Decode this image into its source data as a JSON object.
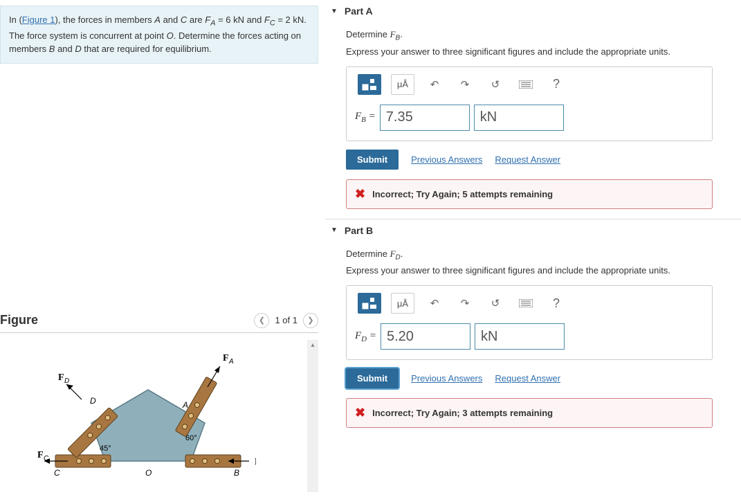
{
  "problem": {
    "text_prefix": "In (",
    "figure_link": "Figure 1",
    "text_mid": "), the forces in members ",
    "mA": "A",
    "and1": " and ",
    "mC": "C",
    "are": " are ",
    "FA_label": "F",
    "FA_sub": "A",
    "FA_val": " = 6 kN",
    "and2": " and ",
    "FC_label": "F",
    "FC_sub": "C",
    "FC_val": " = 2 kN",
    "text_rest": ". The force system is concurrent at point ",
    "ptO": "O",
    "text_end": ". Determine the forces acting on members ",
    "mB": "B",
    "and3": " and ",
    "mD": "D",
    "tail": " that are required for equilibrium."
  },
  "figure": {
    "title": "Figure",
    "nav_text": "1 of 1",
    "labels": {
      "FA": "F",
      "FA_sub": "A",
      "FB": "F",
      "FB_sub": "B",
      "FC": "F",
      "FC_sub": "C",
      "FD": "F",
      "FD_sub": "D",
      "A": "A",
      "B": "B",
      "C": "C",
      "D": "D",
      "O": "O",
      "ang45": "45°",
      "ang60": "60°"
    },
    "colors": {
      "body": "#8fb0ba",
      "body_stroke": "#5a7a85",
      "member": "#b58850",
      "member_stroke": "#5e3f1c",
      "bolt": "#e0c080"
    }
  },
  "parts": [
    {
      "title": "Part A",
      "determine": "Determine ",
      "var": "F",
      "sub": "B",
      "period": ".",
      "instructions": "Express your answer to three significant figures and include the appropriate units.",
      "toolbar": {
        "units_label": "μÅ"
      },
      "eq_var": "F",
      "eq_sub": "B",
      "eq_eq": " = ",
      "value": "7.35",
      "unit": "kN",
      "submit": "Submit",
      "prev": "Previous Answers",
      "req": "Request Answer",
      "feedback": "Incorrect; Try Again; 5 attempts remaining",
      "submit_focus": false
    },
    {
      "title": "Part B",
      "determine": "Determine ",
      "var": "F",
      "sub": "D",
      "period": ".",
      "instructions": "Express your answer to three significant figures and include the appropriate units.",
      "toolbar": {
        "units_label": "μÅ"
      },
      "eq_var": "F",
      "eq_sub": "D",
      "eq_eq": " = ",
      "value": "5.20",
      "unit": "kN",
      "submit": "Submit",
      "prev": "Previous Answers",
      "req": "Request Answer",
      "feedback": "Incorrect; Try Again; 3 attempts remaining",
      "submit_focus": true
    }
  ]
}
